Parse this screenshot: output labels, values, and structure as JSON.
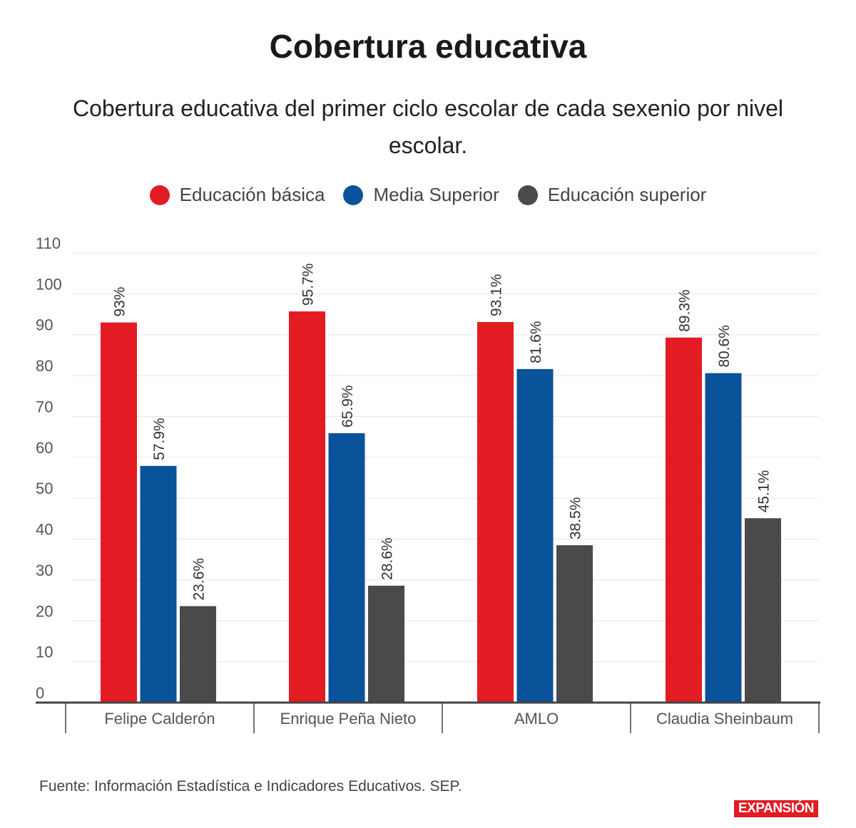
{
  "chart_data": {
    "type": "bar",
    "title": "Cobertura educativa",
    "subtitle": "Cobertura educativa del primer ciclo escolar de cada sexenio por nivel escolar.",
    "categories": [
      "Felipe Calderón",
      "Enrique Peña Nieto",
      "AMLO",
      "Claudia Sheinbaum"
    ],
    "series": [
      {
        "name": "Educación básica",
        "color": "#e31b23",
        "values": [
          93,
          95.7,
          93.1,
          89.3
        ],
        "labels": [
          "93%",
          "95.7%",
          "93.1%",
          "89.3%"
        ]
      },
      {
        "name": "Media Superior",
        "color": "#0a5299",
        "values": [
          57.9,
          65.9,
          81.6,
          80.6
        ],
        "labels": [
          "57.9%",
          "65.9%",
          "81.6%",
          "80.6%"
        ]
      },
      {
        "name": "Educación superior",
        "color": "#4a4a4c",
        "values": [
          23.6,
          28.6,
          38.5,
          45.1
        ],
        "labels": [
          "23.6%",
          "28.6%",
          "38.5%",
          "45.1%"
        ]
      }
    ],
    "ylim": [
      0,
      110
    ],
    "yticks": [
      "0",
      "10",
      "20",
      "30",
      "40",
      "50",
      "60",
      "70",
      "80",
      "90",
      "100",
      "110"
    ],
    "grid": true,
    "legend": "top",
    "xlabel": "",
    "ylabel": ""
  },
  "source": "Fuente: Información Estadística e Indicadores Educativos. SEP.",
  "logo": "EXPANSIÓN"
}
